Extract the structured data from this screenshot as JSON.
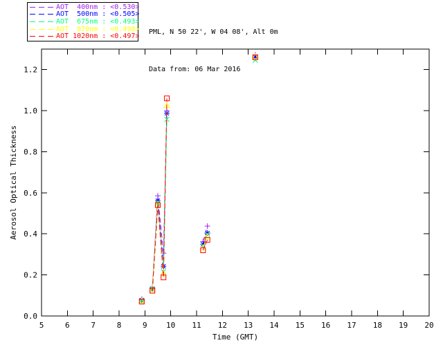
{
  "header": {
    "title_line1": "PML, N 50 22', W 04 08', Alt 0m",
    "title_line2": "Data from: 06 Mar 2016"
  },
  "legend": {
    "position": "top-left",
    "entries": [
      {
        "label": "AOT  400nm : <0.530>",
        "color": "#a020f0"
      },
      {
        "label": "AOT  500nm : <0.505>",
        "color": "#0000ff"
      },
      {
        "label": "AOT  675nm : <0.493>",
        "color": "#00ff7f"
      },
      {
        "label": "AOT  870nm : <0.498>",
        "color": "#ffff00"
      },
      {
        "label": "AOT 1020nm : <0.497>",
        "color": "#ff0000"
      }
    ]
  },
  "chart_data": {
    "type": "line",
    "title": "PML, N 50 22', W 04 08', Alt 0m — Data from: 06 Mar 2016",
    "xlabel": "Time (GMT)",
    "ylabel": "Aerosol Optical Thickness",
    "xlim": [
      5,
      20
    ],
    "ylim": [
      0,
      1.3
    ],
    "xticks": [
      5,
      6,
      7,
      8,
      9,
      10,
      11,
      12,
      13,
      14,
      15,
      16,
      17,
      18,
      19,
      20
    ],
    "yticks": [
      0.0,
      0.2,
      0.4,
      0.6,
      0.8,
      1.0,
      1.2
    ],
    "grid": false,
    "x_groups": [
      [
        8.88
      ],
      [
        9.29,
        9.5,
        9.72,
        9.85
      ],
      [
        11.25,
        11.42
      ],
      [
        13.27
      ]
    ],
    "series": [
      {
        "name": "AOT 400nm",
        "mean": 0.53,
        "color": "#a020f0",
        "marker": "plus",
        "groups": [
          [
            0.082
          ],
          [
            0.138,
            0.585,
            0.306,
            1.0
          ],
          [
            0.362,
            0.438
          ],
          [
            1.272
          ]
        ]
      },
      {
        "name": "AOT 500nm",
        "mean": 0.505,
        "color": "#0000ff",
        "marker": "asterisk",
        "groups": [
          [
            0.078
          ],
          [
            0.133,
            0.562,
            0.242,
            0.987
          ],
          [
            0.349,
            0.404
          ],
          [
            1.262
          ]
        ]
      },
      {
        "name": "AOT 675nm",
        "mean": 0.493,
        "color": "#00ff7f",
        "marker": "x",
        "groups": [
          [
            0.075
          ],
          [
            0.13,
            0.55,
            0.215,
            0.958
          ],
          [
            0.34,
            0.397
          ],
          [
            1.246
          ]
        ]
      },
      {
        "name": "AOT 870nm",
        "mean": 0.498,
        "color": "#ffff00",
        "marker": "triangle",
        "groups": [
          [
            0.072
          ],
          [
            0.127,
            0.545,
            0.205,
            1.025
          ],
          [
            0.332,
            0.386
          ],
          [
            1.262
          ]
        ]
      },
      {
        "name": "AOT 1020nm",
        "mean": 0.497,
        "color": "#ff0000",
        "marker": "square",
        "groups": [
          [
            0.07
          ],
          [
            0.123,
            0.54,
            0.188,
            1.06
          ],
          [
            0.32,
            0.371
          ],
          [
            1.26
          ]
        ]
      }
    ]
  }
}
